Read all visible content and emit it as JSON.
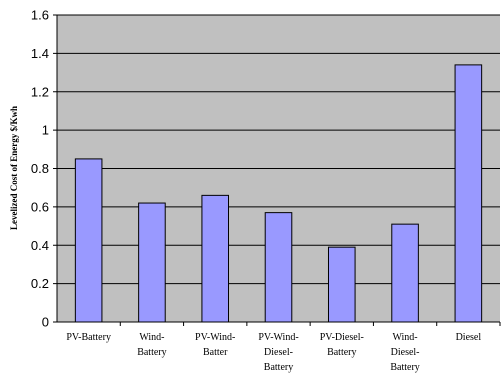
{
  "chart_data": {
    "type": "bar",
    "title": "",
    "xlabel": "",
    "ylabel": "Levelized Cost of Energy $/Kwh",
    "ylim": [
      0,
      1.6
    ],
    "yticks": [
      "0",
      "0.2",
      "0.4",
      "0.6",
      "0.8",
      "1",
      "1.2",
      "1.4",
      "1.6"
    ],
    "grid": true,
    "categories": [
      [
        "PV-Battery"
      ],
      [
        "Wind-",
        "Battery"
      ],
      [
        "PV-Wind-",
        "Batter"
      ],
      [
        "PV-Wind-",
        "Diesel-",
        "Battery"
      ],
      [
        "PV-Diesel-",
        "Battery"
      ],
      [
        "Wind-",
        "Diesel-",
        "Battery"
      ],
      [
        "Diesel"
      ]
    ],
    "values": [
      0.85,
      0.62,
      0.66,
      0.57,
      0.39,
      0.51,
      1.34
    ],
    "colors": {
      "plot_background": "#c0c0c0",
      "bar_fill": "#9999ff",
      "bar_stroke": "#000000",
      "gridline": "#000000"
    }
  }
}
